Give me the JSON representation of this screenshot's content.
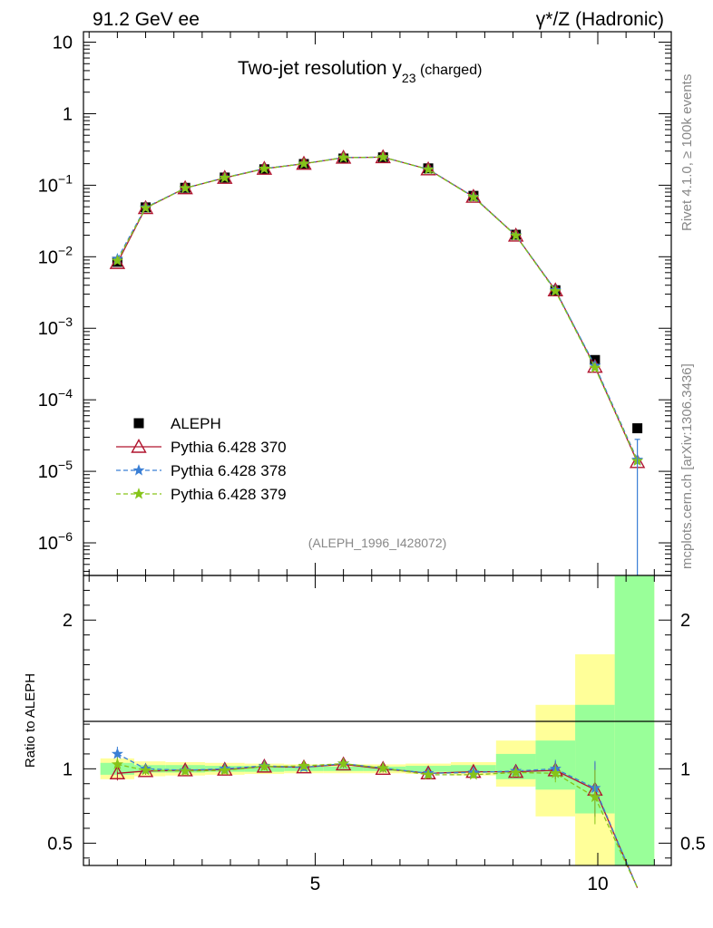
{
  "header": {
    "left": "91.2 GeV ee",
    "right": "γ*/Z (Hadronic)"
  },
  "side": {
    "rivet": "Rivet 4.1.0, ≥ 100k events",
    "mcplots": "mcplots.cern.ch [arXiv:1306.3436]"
  },
  "chart_data": {
    "type": "scatter",
    "title_main": "Two-jet resolution y",
    "title_sub": "23",
    "title_suffix": " (charged)",
    "analysis_label": "(ALEPH_1996_I428072)",
    "x": [
      1.5,
      2.0,
      2.7,
      3.4,
      4.1,
      4.8,
      5.5,
      6.2,
      7.0,
      7.8,
      8.55,
      9.25,
      9.95,
      10.7
    ],
    "xlim": [
      0.9,
      11.3
    ],
    "x_ticks": [
      5,
      10
    ],
    "ylim_log": [
      3.5e-07,
      14
    ],
    "y_ticks": [
      {
        "value": 10,
        "mant": "10",
        "exp": ""
      },
      {
        "value": 1,
        "mant": "1",
        "exp": ""
      },
      {
        "value": 0.1,
        "mant": "10",
        "exp": "−1"
      },
      {
        "value": 0.01,
        "mant": "10",
        "exp": "−2"
      },
      {
        "value": 0.001,
        "mant": "10",
        "exp": "−3"
      },
      {
        "value": 0.0001,
        "mant": "10",
        "exp": "−4"
      },
      {
        "value": 1e-05,
        "mant": "10",
        "exp": "−5"
      },
      {
        "value": 1e-06,
        "mant": "10",
        "exp": "−6"
      }
    ],
    "series": [
      {
        "name": "ALEPH",
        "color": "#000000",
        "marker": "square",
        "line": "none",
        "values": [
          0.0085,
          0.049,
          0.092,
          0.128,
          0.167,
          0.198,
          0.236,
          0.245,
          0.172,
          0.071,
          0.0203,
          0.0034,
          0.00036,
          4e-05
        ]
      },
      {
        "name": "Pythia 6.428 370",
        "color": "#b0142e",
        "marker": "triangle",
        "line": "solid",
        "values": [
          0.0082,
          0.048,
          0.091,
          0.127,
          0.17,
          0.2,
          0.243,
          0.247,
          0.167,
          0.069,
          0.0198,
          0.0034,
          0.00029,
          1.35e-05
        ]
      },
      {
        "name": "Pythia 6.428 378",
        "color": "#3a7fd5",
        "marker": "star",
        "line": "dashed",
        "values": [
          0.0093,
          0.049,
          0.091,
          0.128,
          0.171,
          0.2,
          0.244,
          0.247,
          0.167,
          0.069,
          0.0199,
          0.0034,
          0.0003,
          1.45e-05
        ]
      },
      {
        "name": "Pythia 6.428 379",
        "color": "#86c419",
        "marker": "star",
        "line": "dashed",
        "values": [
          0.0088,
          0.048,
          0.091,
          0.127,
          0.17,
          0.2,
          0.243,
          0.247,
          0.166,
          0.068,
          0.0197,
          0.0033,
          0.00028,
          1.4e-05
        ]
      }
    ],
    "ratio": {
      "ylabel": "Ratio to ALEPH",
      "ylim": [
        0.35,
        2.3
      ],
      "y_ticks": [
        0.5,
        1,
        2
      ],
      "bands": [
        {
          "x0": 1.2,
          "x1": 1.8,
          "y_lo": 0.93,
          "y_hi": 1.07,
          "g_lo": 0.96,
          "g_hi": 1.04
        },
        {
          "x0": 1.8,
          "x1": 2.35,
          "y_lo": 0.95,
          "y_hi": 1.05,
          "g_lo": 0.975,
          "g_hi": 1.025
        },
        {
          "x0": 2.35,
          "x1": 3.05,
          "y_lo": 0.955,
          "y_hi": 1.045,
          "g_lo": 0.975,
          "g_hi": 1.025
        },
        {
          "x0": 3.05,
          "x1": 3.75,
          "y_lo": 0.96,
          "y_hi": 1.04,
          "g_lo": 0.98,
          "g_hi": 1.02
        },
        {
          "x0": 3.75,
          "x1": 4.45,
          "y_lo": 0.965,
          "y_hi": 1.035,
          "g_lo": 0.98,
          "g_hi": 1.02
        },
        {
          "x0": 4.45,
          "x1": 5.15,
          "y_lo": 0.97,
          "y_hi": 1.03,
          "g_lo": 0.985,
          "g_hi": 1.015
        },
        {
          "x0": 5.15,
          "x1": 5.85,
          "y_lo": 0.97,
          "y_hi": 1.03,
          "g_lo": 0.985,
          "g_hi": 1.015
        },
        {
          "x0": 5.85,
          "x1": 6.6,
          "y_lo": 0.97,
          "y_hi": 1.03,
          "g_lo": 0.985,
          "g_hi": 1.015
        },
        {
          "x0": 6.6,
          "x1": 7.4,
          "y_lo": 0.965,
          "y_hi": 1.035,
          "g_lo": 0.98,
          "g_hi": 1.02
        },
        {
          "x0": 7.4,
          "x1": 8.2,
          "y_lo": 0.955,
          "y_hi": 1.045,
          "g_lo": 0.975,
          "g_hi": 1.025
        },
        {
          "x0": 8.2,
          "x1": 8.9,
          "y_lo": 0.88,
          "y_hi": 1.19,
          "g_lo": 0.93,
          "g_hi": 1.1
        },
        {
          "x0": 8.9,
          "x1": 9.6,
          "y_lo": 0.68,
          "y_hi": 1.43,
          "g_lo": 0.86,
          "g_hi": 1.19
        },
        {
          "x0": 9.6,
          "x1": 10.3,
          "y_lo": 0.2,
          "y_hi": 1.77,
          "g_lo": 0.7,
          "g_hi": 1.43
        },
        {
          "x0": 10.3,
          "x1": 11.0,
          "y_lo": 0.2,
          "y_hi": 2.5,
          "g_lo": 0.2,
          "g_hi": 2.5
        }
      ],
      "series": [
        {
          "name": "Pythia 6.428 370",
          "values": [
            0.97,
            0.985,
            0.99,
            0.995,
            1.015,
            1.01,
            1.03,
            1.0,
            0.97,
            0.98,
            0.98,
            0.99,
            0.86,
            0.2
          ]
        },
        {
          "name": "Pythia 6.428 378",
          "values": [
            1.1,
            1.0,
            0.99,
            1.0,
            1.02,
            1.01,
            1.035,
            1.005,
            0.97,
            0.975,
            0.985,
            1.0,
            0.87,
            0.2
          ]
        },
        {
          "name": "Pythia 6.428 379",
          "values": [
            1.03,
            0.99,
            0.985,
            0.99,
            1.015,
            1.02,
            1.035,
            1.005,
            0.96,
            0.96,
            0.975,
            0.97,
            0.81,
            0.2
          ]
        }
      ]
    }
  }
}
